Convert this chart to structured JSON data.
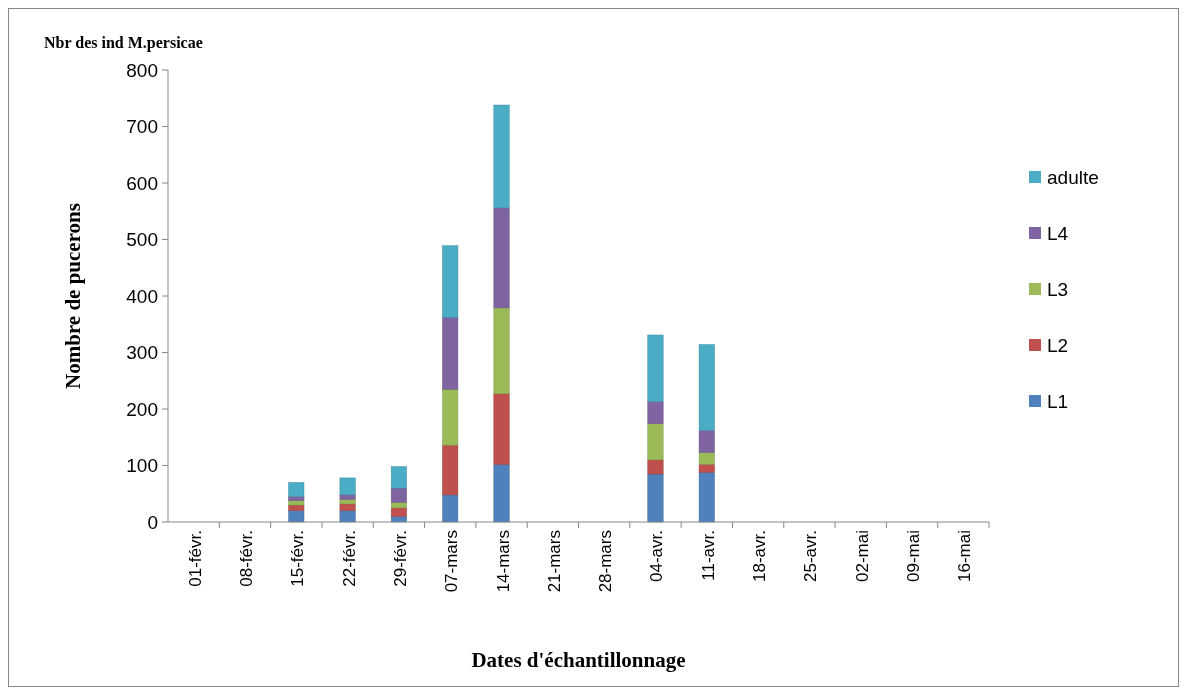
{
  "chart_data": {
    "type": "bar",
    "stacked": true,
    "title": "Nbr des ind M.persicae",
    "xlabel": "Dates d'échantillonnage",
    "ylabel": "Nombre de pucerons",
    "categories": [
      "01-févr.",
      "08-févr.",
      "15-févr.",
      "22-févr.",
      "29-févr.",
      "07-mars",
      "14-mars",
      "21-mars",
      "28-mars",
      "04-avr.",
      "11-avr.",
      "18-avr.",
      "25-avr.",
      "02-mai",
      "09-mai",
      "16-mai"
    ],
    "series": [
      {
        "name": "L1",
        "color": "#4f81bd",
        "values": [
          0,
          0,
          20,
          20,
          10,
          48,
          102,
          0,
          0,
          85,
          88,
          0,
          0,
          0,
          0,
          0
        ]
      },
      {
        "name": "L2",
        "color": "#c0504d",
        "values": [
          0,
          0,
          10,
          12,
          15,
          88,
          125,
          0,
          0,
          25,
          14,
          0,
          0,
          0,
          0,
          0
        ]
      },
      {
        "name": "L3",
        "color": "#9bbb59",
        "values": [
          0,
          0,
          8,
          8,
          10,
          99,
          152,
          0,
          0,
          64,
          21,
          0,
          0,
          0,
          0,
          0
        ]
      },
      {
        "name": "L4",
        "color": "#8064a2",
        "values": [
          0,
          0,
          7,
          8,
          25,
          127,
          177,
          0,
          0,
          39,
          39,
          0,
          0,
          0,
          0,
          0
        ]
      },
      {
        "name": "adulte",
        "color": "#4bacc6",
        "values": [
          0,
          0,
          25,
          30,
          38,
          127,
          182,
          0,
          0,
          118,
          152,
          0,
          0,
          0,
          0,
          0
        ]
      }
    ],
    "ylim": [
      0,
      800
    ],
    "yticks": [
      0,
      100,
      200,
      300,
      400,
      500,
      600,
      700,
      800
    ],
    "grid": false,
    "legend": "right"
  }
}
